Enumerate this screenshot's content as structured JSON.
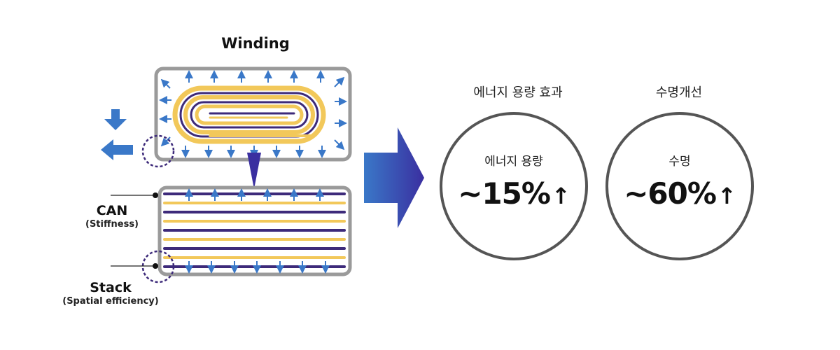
{
  "winding": {
    "title": "Winding"
  },
  "stack": {
    "can_label": "CAN",
    "can_sub": "(Stiffness)",
    "stack_label": "Stack",
    "stack_sub": "(Spatial efficiency)"
  },
  "benefits": [
    {
      "heading": "에너지 용량 효과",
      "caption": "에너지 용량",
      "value": "~15%",
      "arrow": "↑"
    },
    {
      "heading": "수명개선",
      "caption": "수명",
      "value": "~60%",
      "arrow": "↑"
    }
  ],
  "colors": {
    "arrow_blue": "#3a78c8",
    "navy": "#3d2a7a",
    "gold": "#f2c85a",
    "frame_gray": "#9a9a9a",
    "big_arrow_start": "#3a78c8",
    "big_arrow_end": "#3a2fa0"
  }
}
